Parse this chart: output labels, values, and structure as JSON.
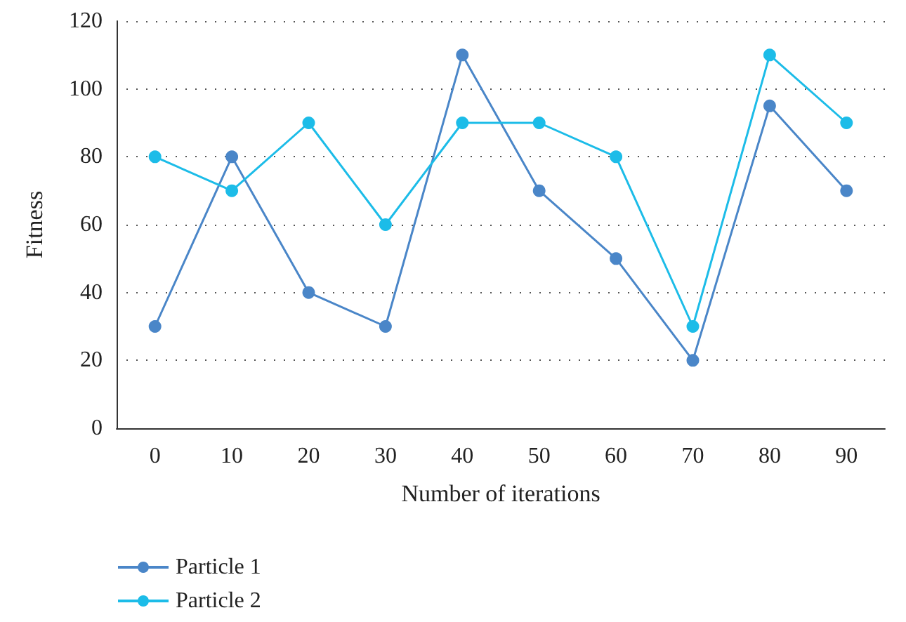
{
  "chart_data": {
    "type": "line",
    "xlabel": "Number of iterations",
    "ylabel": "Fitness",
    "categories": [
      "0",
      "10",
      "20",
      "30",
      "40",
      "50",
      "60",
      "70",
      "80",
      "90"
    ],
    "series": [
      {
        "name": "Particle 1",
        "color": "#4a86c8",
        "values": [
          30,
          80,
          40,
          30,
          110,
          70,
          50,
          20,
          95,
          70
        ]
      },
      {
        "name": "Particle 2",
        "color": "#1cbce8",
        "values": [
          80,
          70,
          90,
          60,
          90,
          90,
          80,
          30,
          110,
          90
        ]
      }
    ],
    "ylim": [
      0,
      120
    ],
    "yticks": [
      0,
      20,
      40,
      60,
      80,
      100,
      120
    ],
    "grid": "y",
    "legend": "bottom left",
    "marker": "circle",
    "line_style": "solid"
  }
}
